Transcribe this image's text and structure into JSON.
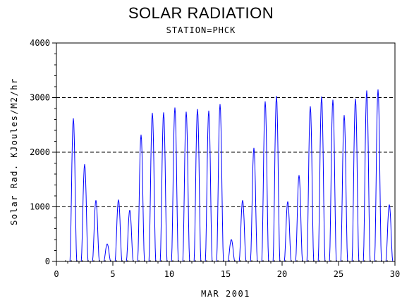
{
  "chart_data": {
    "type": "line",
    "title": "SOLAR RADIATION",
    "subtitle": "STATION=PHCK",
    "xlabel": "MAR 2001",
    "ylabel": "Solar Rad. KJoules/M2/hr",
    "xlim": [
      0,
      30
    ],
    "ylim": [
      0,
      4000
    ],
    "xticks": [
      0,
      5,
      10,
      15,
      20,
      25,
      30
    ],
    "yticks": [
      0,
      1000,
      2000,
      3000,
      4000
    ],
    "grid": "horizontal dashed",
    "series": [
      {
        "color": "#0000ff",
        "daily_peaks": [
          {
            "day": 1.5,
            "value": 2620
          },
          {
            "day": 2.5,
            "value": 1780
          },
          {
            "day": 3.5,
            "value": 1120
          },
          {
            "day": 4.5,
            "value": 320
          },
          {
            "day": 5.5,
            "value": 1130
          },
          {
            "day": 6.5,
            "value": 940
          },
          {
            "day": 7.5,
            "value": 2320
          },
          {
            "day": 8.5,
            "value": 2720
          },
          {
            "day": 9.5,
            "value": 2730
          },
          {
            "day": 10.5,
            "value": 2820
          },
          {
            "day": 11.5,
            "value": 2740
          },
          {
            "day": 12.5,
            "value": 2790
          },
          {
            "day": 13.5,
            "value": 2760
          },
          {
            "day": 14.5,
            "value": 2880
          },
          {
            "day": 15.5,
            "value": 400
          },
          {
            "day": 16.5,
            "value": 1120
          },
          {
            "day": 17.5,
            "value": 2080
          },
          {
            "day": 18.5,
            "value": 2930
          },
          {
            "day": 19.5,
            "value": 3030
          },
          {
            "day": 20.5,
            "value": 1100
          },
          {
            "day": 21.5,
            "value": 1580
          },
          {
            "day": 22.5,
            "value": 2840
          },
          {
            "day": 23.5,
            "value": 3020
          },
          {
            "day": 24.5,
            "value": 2960
          },
          {
            "day": 25.5,
            "value": 2680
          },
          {
            "day": 26.5,
            "value": 2980
          },
          {
            "day": 27.5,
            "value": 3130
          },
          {
            "day": 28.5,
            "value": 3150
          },
          {
            "day": 29.5,
            "value": 1040
          }
        ]
      }
    ]
  }
}
